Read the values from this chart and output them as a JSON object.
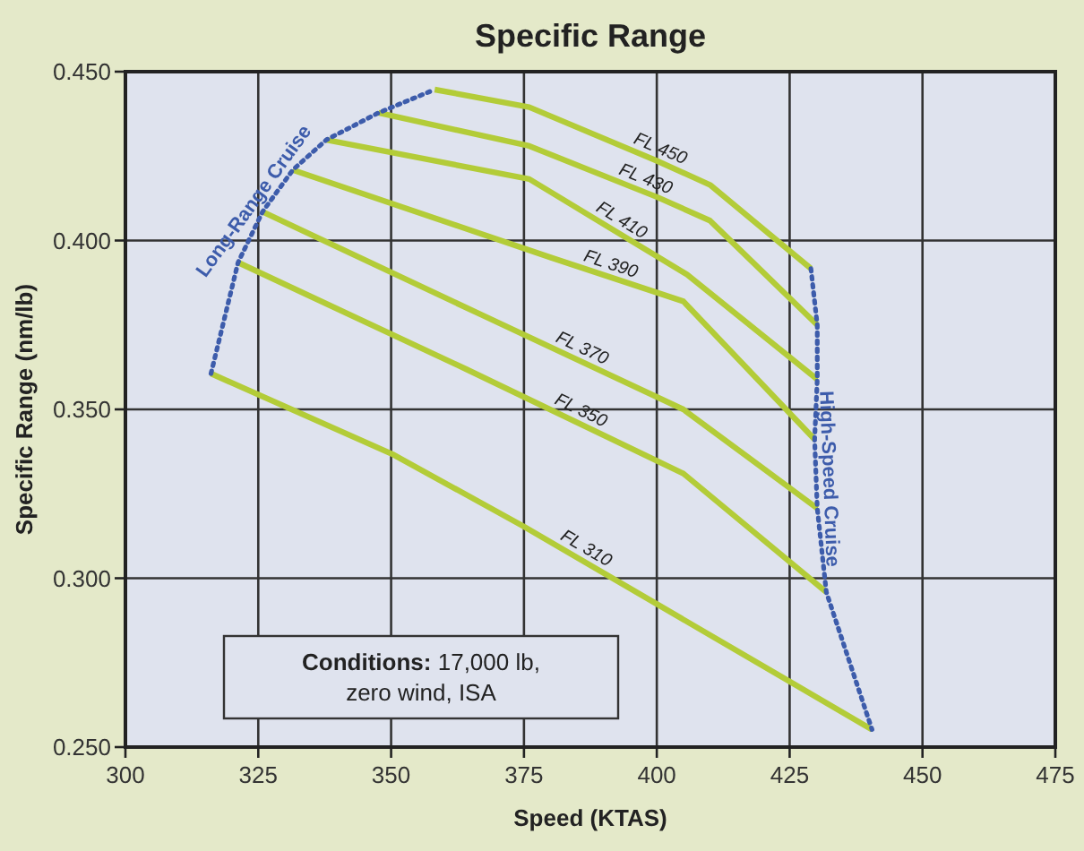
{
  "chart_data": {
    "type": "line",
    "title": "Specific Range",
    "xlabel": "Speed (KTAS)",
    "ylabel": "Specific Range (nm/lb)",
    "xlim": [
      300,
      475
    ],
    "xticks": [
      300,
      325,
      350,
      375,
      400,
      425,
      450,
      475
    ],
    "ylim": [
      0.25,
      0.45
    ],
    "yticks": [
      {
        "value": 0.25,
        "label": "0.250"
      },
      {
        "value": 0.3,
        "label": "0.300"
      },
      {
        "value": 0.35,
        "label": "0.350"
      },
      {
        "value": 0.4,
        "label": "0.400"
      },
      {
        "value": 0.45,
        "label": "0.450"
      }
    ],
    "grid": true,
    "marker": "none",
    "line_style": "solid",
    "annotations": [
      "Conditions: 17,000 lb,\nzero wind, ISA"
    ],
    "series": [
      {
        "name": "FL 450",
        "color": "#b3cc38",
        "x": [
          358.2,
          376,
          400,
          410,
          429
        ],
        "values": [
          0.4447,
          0.4395,
          0.4236,
          0.4165,
          0.3917
        ]
      },
      {
        "name": "FL 430",
        "color": "#b3cc38",
        "x": [
          347.6,
          376,
          400,
          410,
          430.2
        ],
        "values": [
          0.4378,
          0.428,
          0.4129,
          0.4059,
          0.375
        ]
      },
      {
        "name": "FL 410",
        "color": "#b3cc38",
        "x": [
          337.8,
          376,
          405.7,
          430.2
        ],
        "values": [
          0.4298,
          0.4182,
          0.3899,
          0.3589
        ]
      },
      {
        "name": "FL 390",
        "color": "#b3cc38",
        "x": [
          331.5,
          380,
          405,
          429.7
        ],
        "values": [
          0.4209,
          0.395,
          0.382,
          0.3411
        ]
      },
      {
        "name": "FL 370",
        "color": "#b3cc38",
        "x": [
          325.8,
          367,
          405,
          430.2
        ],
        "values": [
          0.4085,
          0.378,
          0.35,
          0.3207
        ]
      },
      {
        "name": "FL 350",
        "color": "#b3cc38",
        "x": [
          321.2,
          364,
          405,
          431.9
        ],
        "values": [
          0.3935,
          0.362,
          0.331,
          0.2959
        ]
      },
      {
        "name": "FL 310",
        "color": "#b3cc38",
        "x": [
          316.1,
          350.3,
          374.9,
          440.5
        ],
        "values": [
          0.3606,
          0.3367,
          0.3154,
          0.2552
        ]
      },
      {
        "name": "Long-Range Cruise",
        "color": "#3d5cab",
        "line_style": "dotted",
        "x": [
          316.1,
          321.2,
          325.8,
          331.5,
          337.8,
          347.6,
          358.2
        ],
        "values": [
          0.3606,
          0.3935,
          0.4085,
          0.4209,
          0.4298,
          0.4378,
          0.4447
        ]
      },
      {
        "name": "High-Speed Cruise",
        "color": "#3d5cab",
        "line_style": "dotted",
        "x": [
          429,
          430.2,
          430.2,
          429.7,
          430.2,
          431.9,
          440.5
        ],
        "values": [
          0.3917,
          0.375,
          0.3589,
          0.3411,
          0.3207,
          0.2959,
          0.2552
        ]
      }
    ]
  }
}
